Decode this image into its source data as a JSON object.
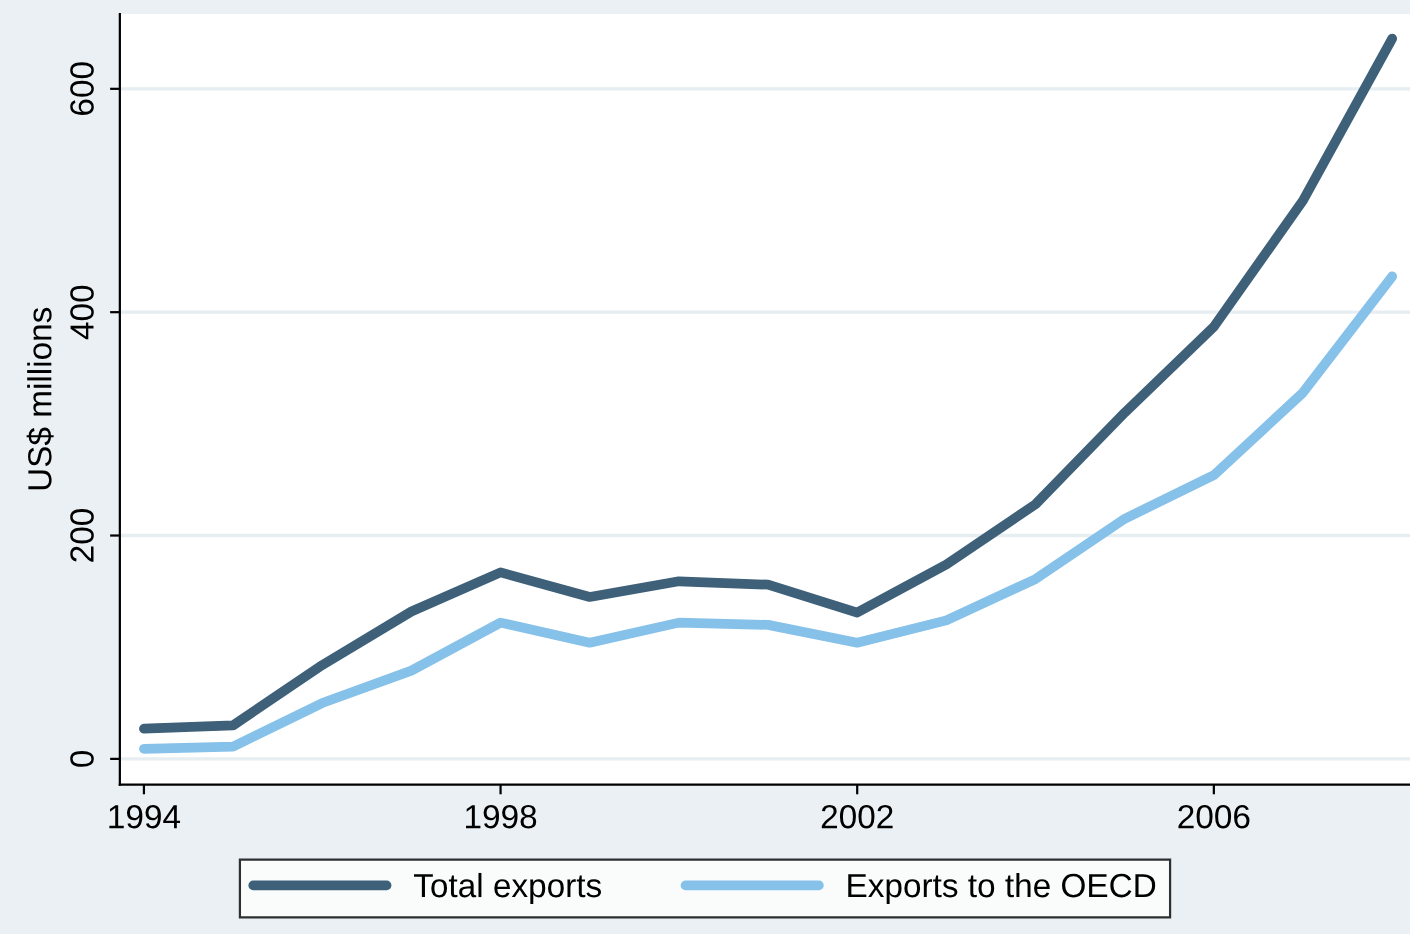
{
  "chart_data": {
    "type": "line",
    "ylabel": "US$ millions",
    "x": [
      1994,
      1995,
      1996,
      1997,
      1998,
      1999,
      2000,
      2001,
      2002,
      2003,
      2004,
      2005,
      2006,
      2007,
      2008
    ],
    "series": [
      {
        "name": "Total exports",
        "color": "#3e6079",
        "values": [
          27,
          30,
          84,
          132,
          167,
          145,
          159,
          156,
          131,
          174,
          228,
          310,
          387,
          500,
          645
        ]
      },
      {
        "name": "Exports to the OECD",
        "color": "#86c1e9",
        "values": [
          9,
          11,
          50,
          79,
          122,
          104,
          122,
          120,
          104,
          124,
          161,
          215,
          254,
          328,
          432
        ]
      }
    ],
    "xlim": [
      1993.73,
      2008.2
    ],
    "xticks": [
      1994,
      1998,
      2002,
      2006
    ],
    "ylim": [
      -23,
      667
    ],
    "yticks": [
      0,
      200,
      400,
      600
    ],
    "grid": "y",
    "legend": "bottom",
    "marker": "none",
    "line_style": "solid"
  }
}
